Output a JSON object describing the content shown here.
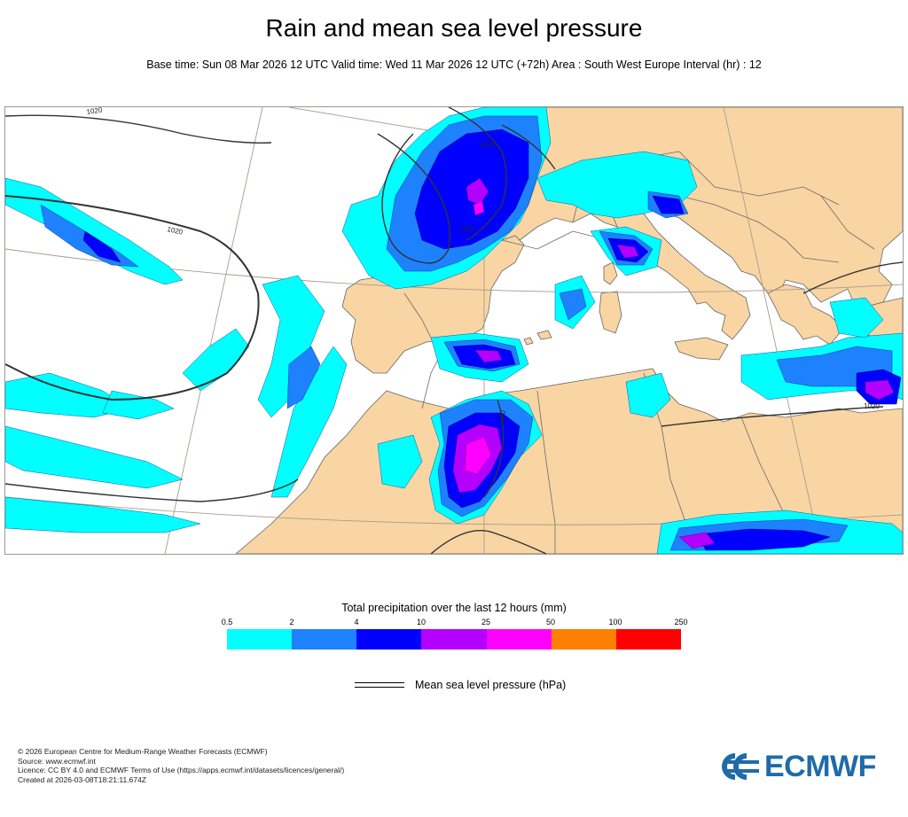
{
  "title": "Rain and mean sea level pressure",
  "subtitle": "Base time: Sun 08 Mar 2026 12 UTC Valid time: Wed 11 Mar 2026 12 UTC (+72h) Area : South West Europe Interval (hr) : 12",
  "map": {
    "isobar_labels": [
      "1020",
      "1020",
      "1020",
      "1020",
      "1020",
      "1020"
    ],
    "colors": {
      "land": "#f8d5a3",
      "sea": "#ffffff",
      "border": "#555555",
      "graticule": "#a89c8a",
      "isobar": "#333333"
    }
  },
  "legend": {
    "title": "Total precipitation over the last 12 hours (mm)",
    "ticks": [
      "0.5",
      "2",
      "4",
      "10",
      "25",
      "50",
      "100",
      "250"
    ],
    "colors": [
      "#00ffff",
      "#1e82ff",
      "#0000ff",
      "#b400ff",
      "#ff00ff",
      "#ff8000",
      "#ff0000"
    ],
    "isobar_label": "Mean sea level pressure (hPa)"
  },
  "footer": {
    "line1": "© 2026 European Centre for Medium-Range Weather Forecasts (ECMWF)",
    "line2": "Source: www.ecmwf.int",
    "line3": "Licence: CC BY 4.0 and ECMWF Terms of Use (https://apps.ecmwf.int/datasets/licences/general/)",
    "line4": "Created at 2026-03-08T18:21:11.674Z"
  },
  "logo": {
    "text": "ECMWF",
    "color": "#1f6ba9"
  }
}
